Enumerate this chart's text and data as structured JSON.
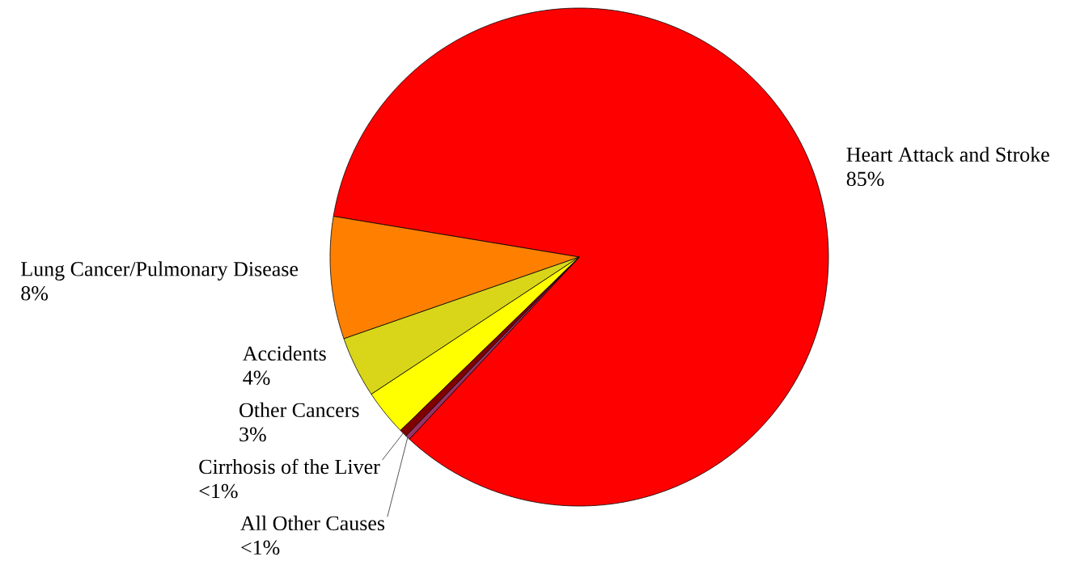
{
  "chart_data": {
    "type": "pie",
    "categories": [
      "Heart Attack and Stroke",
      "Lung Cancer/Pulmonary Disease",
      "Accidents",
      "Other Cancers",
      "Cirrhosis of the Liver",
      "All Other Causes"
    ],
    "values": [
      85,
      8,
      4,
      3,
      0.5,
      0.3
    ],
    "value_labels": [
      "85%",
      "8%",
      "4%",
      "3%",
      "<1%",
      "<1%"
    ],
    "colors": [
      "#ff0000",
      "#ff8000",
      "#d9d61a",
      "#ffff00",
      "#800000",
      "#993366"
    ]
  }
}
